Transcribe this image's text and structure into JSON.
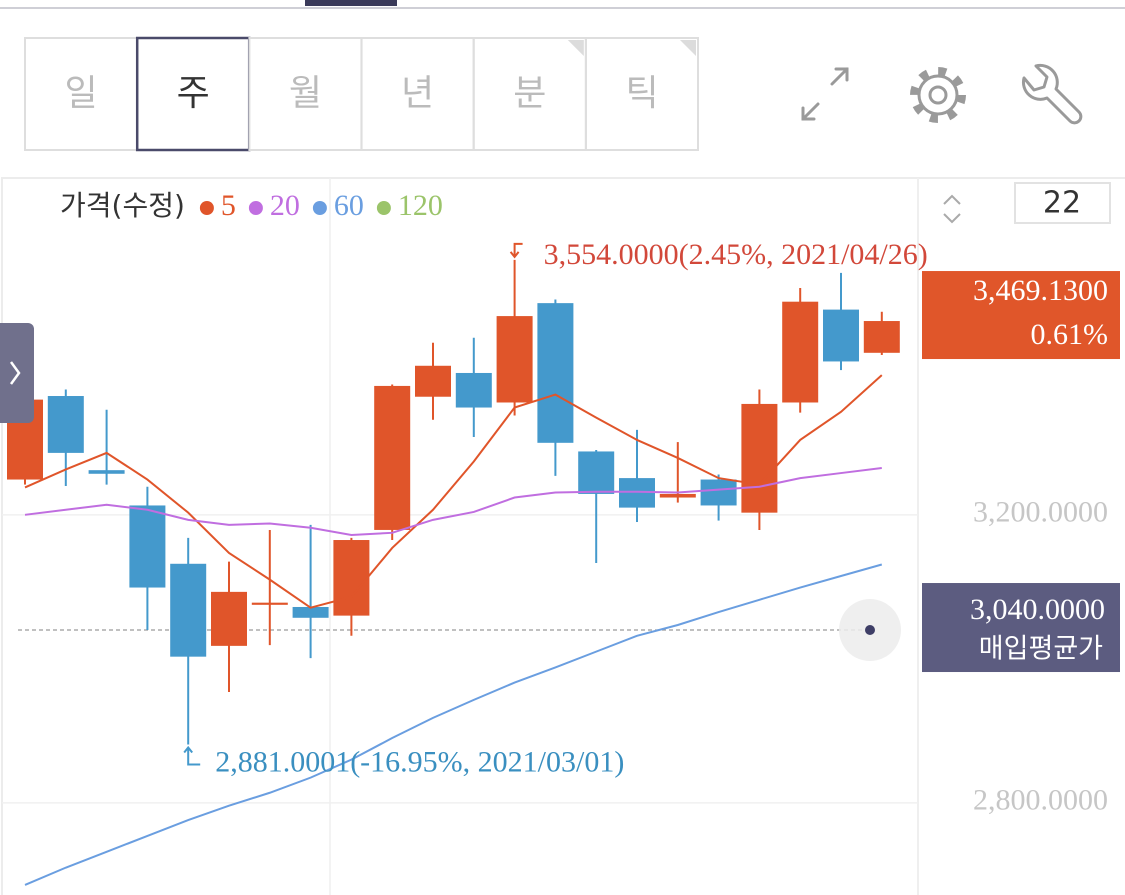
{
  "tabs": {
    "items": [
      {
        "label": "일",
        "submenu": false
      },
      {
        "label": "주",
        "submenu": false
      },
      {
        "label": "월",
        "submenu": false
      },
      {
        "label": "년",
        "submenu": false
      },
      {
        "label": "분",
        "submenu": true
      },
      {
        "label": "틱",
        "submenu": true
      }
    ],
    "selected": 1
  },
  "chart_data": {
    "type": "candlestick",
    "legend_title": "가격(수정)",
    "count": 22,
    "up_color": "#e0552a",
    "down_color": "#4499cc",
    "open": [
      3249,
      3365,
      3262,
      3213,
      3132,
      3018,
      3075,
      3072,
      3060,
      3179,
      3364,
      3397,
      3356,
      3494,
      3288,
      3251,
      3224,
      3249,
      3203,
      3356,
      3485,
      3425
    ],
    "high": [
      3367,
      3374,
      3346,
      3239,
      3168,
      3135,
      3179,
      3186,
      3168,
      3381,
      3439,
      3446,
      3554,
      3499,
      3290,
      3318,
      3301,
      3256,
      3374,
      3515,
      3536,
      3482
    ],
    "low": [
      3242,
      3240,
      3242,
      3040,
      2881.0001,
      2954,
      3019,
      3001,
      3032,
      3165,
      3332,
      3308,
      3338,
      3254,
      3133,
      3190,
      3217,
      3192,
      3179,
      3342,
      3401,
      3422
    ],
    "close": [
      3360,
      3286,
      3257,
      3099,
      3003,
      3093,
      3078,
      3057,
      3165,
      3379,
      3407,
      3349,
      3476,
      3300,
      3229,
      3210,
      3229,
      3213,
      3354,
      3496,
      3413,
      3469.13
    ],
    "ma_series": [
      {
        "name": "5",
        "color": "#e0552a",
        "values": [
          3238,
          3263,
          3286,
          3249,
          3203,
          3147,
          3110,
          3071,
          3086,
          3154,
          3207,
          3274,
          3349,
          3367,
          3335,
          3304,
          3279,
          3251,
          3242,
          3304,
          3343,
          3394
        ]
      },
      {
        "name": "20",
        "color": "#c06ee0",
        "values": [
          3200,
          3207,
          3214,
          3207,
          3193,
          3186,
          3188,
          3182,
          3172,
          3175,
          3193,
          3204,
          3224,
          3231,
          3232,
          3232,
          3231,
          3235,
          3239,
          3251,
          3258,
          3265
        ]
      },
      {
        "name": "60",
        "color": "#6a9ee0",
        "values": [
          2686,
          2710,
          2732,
          2754,
          2776,
          2796,
          2814,
          2835,
          2860,
          2890,
          2918,
          2943,
          2967,
          2988,
          3010,
          3032,
          3047,
          3065,
          3082,
          3099,
          3115,
          3131
        ]
      },
      {
        "name": "120",
        "color": "#9bc46a",
        "values": [
          null,
          null,
          null,
          null,
          null,
          null,
          null,
          null,
          null,
          null,
          null,
          null,
          null,
          null,
          null,
          null,
          null,
          null,
          null,
          null,
          null,
          null
        ]
      }
    ],
    "ylim": [
      2672,
      3665
    ],
    "yticks": [
      {
        "value": 3200,
        "label": "3,200.0000"
      },
      {
        "value": 2800,
        "label": "2,800.0000"
      }
    ],
    "grid": true,
    "high_label": "3,554.0000(2.45%, 2021/04/26)",
    "low_label": "2,881.0001(-16.95%, 2021/03/01)",
    "current_price_label": "3,469.1300",
    "current_change_label": "0.61%",
    "avg_price": 3040,
    "avg_price_label": "3,040.0000",
    "avg_price_name": "매입평균가"
  }
}
